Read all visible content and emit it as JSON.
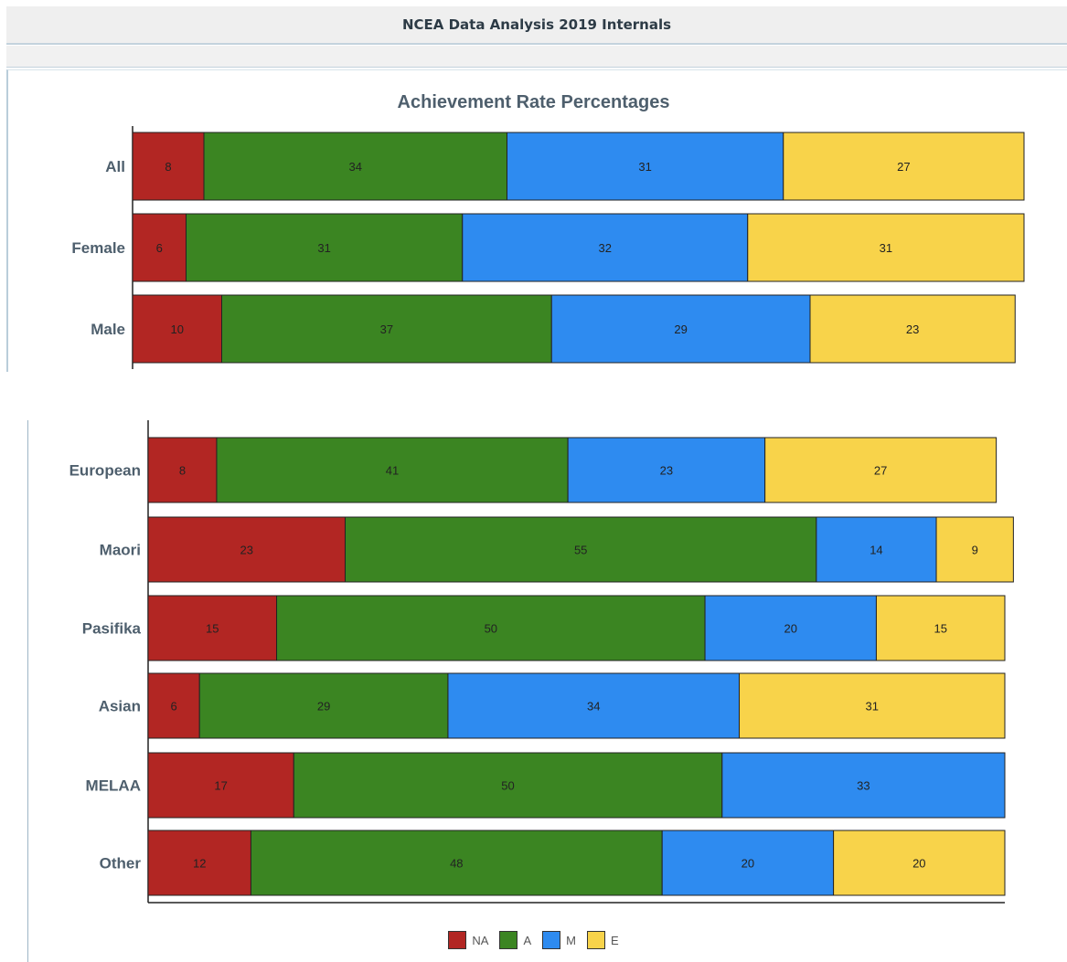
{
  "header": {
    "title": "NCEA Data Analysis 2019 Internals"
  },
  "colors": {
    "NA": "#b22623",
    "A": "#3b8522",
    "M": "#2e8bf0",
    "E": "#f8d34a"
  },
  "chart_data": [
    {
      "type": "bar",
      "orientation": "horizontal",
      "stacked": true,
      "title": "Achievement Rate Percentages",
      "categories": [
        "All",
        "Female",
        "Male"
      ],
      "series": [
        {
          "name": "NA",
          "values": [
            8,
            6,
            10
          ]
        },
        {
          "name": "A",
          "values": [
            34,
            31,
            37
          ]
        },
        {
          "name": "M",
          "values": [
            31,
            32,
            29
          ]
        },
        {
          "name": "E",
          "values": [
            27,
            31,
            23
          ]
        }
      ],
      "xlim": [
        0,
        100
      ]
    },
    {
      "type": "bar",
      "orientation": "horizontal",
      "stacked": true,
      "title": "",
      "categories": [
        "European",
        "Maori",
        "Pasifika",
        "Asian",
        "MELAA",
        "Other"
      ],
      "series": [
        {
          "name": "NA",
          "values": [
            8,
            23,
            15,
            6,
            17,
            12
          ]
        },
        {
          "name": "A",
          "values": [
            41,
            55,
            50,
            29,
            50,
            48
          ]
        },
        {
          "name": "M",
          "values": [
            23,
            14,
            20,
            34,
            33,
            20
          ]
        },
        {
          "name": "E",
          "values": [
            27,
            9,
            15,
            31,
            0,
            20
          ]
        }
      ],
      "xlim": [
        0,
        100
      ],
      "legend": "bottom"
    }
  ]
}
